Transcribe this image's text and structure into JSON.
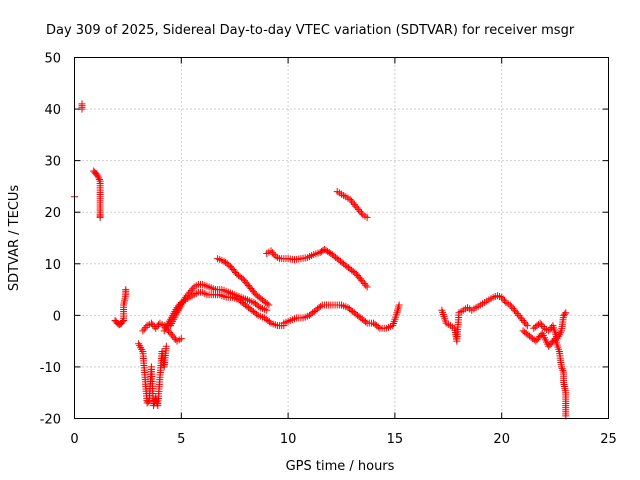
{
  "chart_data": {
    "type": "scatter",
    "title": "Day 309 of 2025, Sidereal Day-to-day VTEC variation (SDTVAR) for receiver msgr",
    "xlabel": "GPS time / hours",
    "ylabel": "SDTVAR / TECUs",
    "xlim": [
      0,
      25
    ],
    "ylim": [
      -20,
      50
    ],
    "xticks": [
      0,
      5,
      10,
      15,
      20,
      25
    ],
    "yticks": [
      -20,
      -10,
      0,
      10,
      20,
      30,
      40,
      50
    ],
    "xtick_labels": [
      "0",
      "5",
      "10",
      "15",
      "20",
      "25"
    ],
    "ytick_labels": [
      "-20",
      "-10",
      "0",
      "10",
      "20",
      "30",
      "40",
      "50"
    ],
    "grid": true,
    "marker": "+",
    "color": "#ff0000",
    "series": [
      {
        "name": "s1",
        "x": [
          0.0
        ],
        "y": [
          23.0
        ]
      },
      {
        "name": "s2",
        "x": [
          0.35,
          0.35
        ],
        "y": [
          40.0,
          41.0
        ]
      },
      {
        "name": "s3",
        "x": [
          0.9,
          1.0,
          1.1,
          1.2,
          1.2,
          1.2,
          1.2,
          1.2
        ],
        "y": [
          28.0,
          27.5,
          27.0,
          26.0,
          23.0,
          21.0,
          19.5,
          19.0
        ]
      },
      {
        "name": "s4",
        "x": [
          1.9,
          2.0,
          2.1,
          2.2,
          2.3,
          2.3,
          2.4,
          2.4
        ],
        "y": [
          -1.0,
          -1.5,
          -1.8,
          -1.5,
          -1.0,
          2.0,
          4.0,
          5.0
        ]
      },
      {
        "name": "s5",
        "x": [
          3.0,
          3.2,
          3.3,
          3.4,
          3.5,
          3.6,
          3.7,
          3.8,
          3.9,
          4.0,
          4.1,
          4.2,
          4.3
        ],
        "y": [
          -5.5,
          -7.0,
          -12.0,
          -17.0,
          -16.5,
          -10.0,
          -17.5,
          -16.0,
          -17.5,
          -12.0,
          -7.0,
          -10.0,
          -6.0
        ]
      },
      {
        "name": "s6",
        "x": [
          3.2,
          3.4,
          3.6,
          3.8,
          4.0,
          4.2,
          4.4,
          4.6,
          4.8,
          5.0
        ],
        "y": [
          -3.0,
          -2.0,
          -1.5,
          -2.5,
          -1.5,
          -2.0,
          -3.0,
          -4.0,
          -5.0,
          -4.5
        ]
      },
      {
        "name": "s7",
        "x": [
          4.5,
          4.8,
          5.0,
          5.2,
          5.4,
          5.6,
          5.8,
          6.0,
          6.3,
          6.6,
          6.9,
          7.2,
          7.5,
          7.8,
          8.1,
          8.4,
          8.7,
          9.0
        ],
        "y": [
          -2.0,
          0.5,
          2.0,
          3.5,
          4.5,
          5.5,
          6.0,
          6.0,
          5.5,
          5.0,
          5.0,
          4.5,
          4.0,
          3.5,
          3.0,
          2.5,
          1.5,
          1.0
        ]
      },
      {
        "name": "s8",
        "x": [
          4.2,
          4.4,
          4.6,
          4.8,
          5.0,
          5.2,
          5.4,
          5.6,
          5.8,
          6.0,
          6.2,
          6.5,
          6.8,
          7.1,
          7.4,
          7.7,
          8.0,
          8.3,
          8.6,
          8.9,
          9.2,
          9.5,
          9.8
        ],
        "y": [
          -3.0,
          -1.5,
          0.0,
          1.5,
          2.5,
          3.0,
          3.5,
          4.0,
          4.5,
          4.5,
          4.0,
          4.0,
          4.0,
          3.5,
          3.5,
          3.0,
          2.0,
          1.0,
          0.0,
          -0.5,
          -1.5,
          -2.0,
          -2.0
        ]
      },
      {
        "name": "s9",
        "x": [
          6.7,
          7.0,
          7.3,
          7.6,
          7.9,
          8.2,
          8.5,
          8.8,
          9.1
        ],
        "y": [
          11.0,
          10.5,
          9.5,
          8.0,
          7.0,
          5.5,
          4.0,
          3.0,
          2.0
        ]
      },
      {
        "name": "s10",
        "x": [
          9.0,
          9.2,
          9.4,
          9.6,
          9.8,
          10.0,
          10.3,
          10.6,
          10.9,
          11.2,
          11.5,
          11.7,
          12.0,
          12.3,
          12.6,
          12.9,
          13.2,
          13.5,
          13.7
        ],
        "y": [
          12.0,
          12.5,
          11.5,
          11.0,
          11.0,
          11.0,
          10.8,
          11.0,
          11.2,
          11.8,
          12.2,
          12.8,
          12.0,
          11.0,
          10.0,
          9.0,
          8.0,
          6.5,
          5.5
        ]
      },
      {
        "name": "s11",
        "x": [
          9.8,
          10.1,
          10.4,
          10.7,
          11.0,
          11.3,
          11.6,
          11.9,
          12.2,
          12.5,
          12.8,
          13.1,
          13.4,
          13.7,
          14.0,
          14.3,
          14.6,
          14.9,
          15.1,
          15.2
        ],
        "y": [
          -1.5,
          -1.0,
          -0.5,
          -0.5,
          0.0,
          1.0,
          2.0,
          2.0,
          2.0,
          2.0,
          1.5,
          0.5,
          -0.5,
          -1.5,
          -1.5,
          -2.5,
          -2.5,
          -2.0,
          0.5,
          2.0
        ]
      },
      {
        "name": "s12",
        "x": [
          12.3,
          12.5,
          12.7,
          12.9,
          13.1,
          13.3,
          13.5,
          13.7
        ],
        "y": [
          24.0,
          23.5,
          23.0,
          22.5,
          21.5,
          20.5,
          19.5,
          19.0
        ]
      },
      {
        "name": "s13",
        "x": [
          17.2,
          17.4,
          17.6,
          17.8,
          17.9,
          18.0,
          18.2,
          18.4,
          18.6,
          18.8,
          19.0,
          19.2,
          19.4,
          19.6,
          19.8,
          20.0,
          20.2,
          20.4,
          20.6,
          20.8,
          21.0,
          21.2
        ],
        "y": [
          1.0,
          -1.5,
          -2.0,
          -2.5,
          -5.0,
          0.5,
          1.0,
          1.5,
          1.0,
          1.5,
          2.0,
          2.5,
          3.0,
          3.5,
          3.8,
          3.5,
          2.5,
          2.0,
          1.0,
          0.0,
          -1.0,
          -2.0
        ]
      },
      {
        "name": "s14",
        "x": [
          21.0,
          21.3,
          21.6,
          21.9,
          22.2,
          22.5,
          22.7,
          22.8,
          22.9,
          22.9,
          23.0,
          23.0,
          23.0
        ],
        "y": [
          -3.0,
          -4.0,
          -5.0,
          -3.5,
          -6.0,
          -4.5,
          -7.0,
          -10.0,
          -11.0,
          -13.0,
          -15.0,
          -17.5,
          -19.5
        ]
      },
      {
        "name": "s15",
        "x": [
          21.5,
          21.8,
          22.0,
          22.2,
          22.4,
          22.6,
          22.8,
          22.9,
          23.0
        ],
        "y": [
          -2.5,
          -1.5,
          -2.5,
          -3.0,
          -2.0,
          -4.5,
          -3.0,
          0.0,
          0.5
        ]
      }
    ]
  }
}
